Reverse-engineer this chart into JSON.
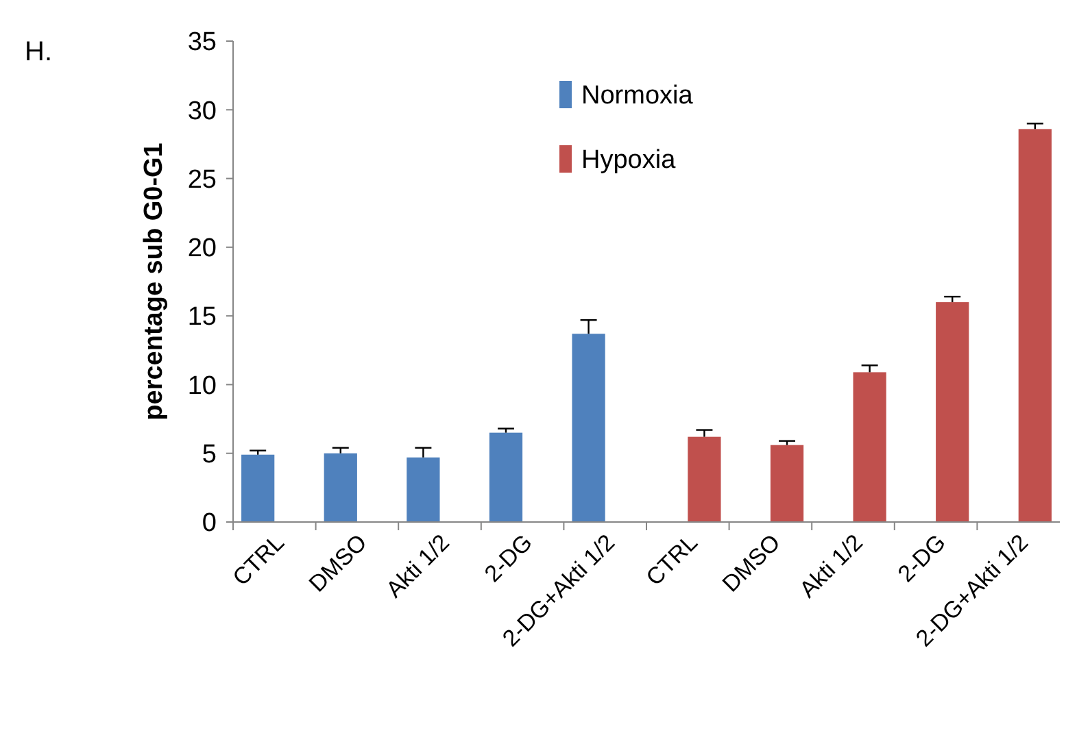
{
  "chart_data": {
    "type": "bar",
    "title": "H.",
    "ylabel": "percentage sub G0-G1",
    "categories": [
      "CTRL",
      "DMSO",
      "Akti 1/2",
      "2-DG",
      "2-DG+Akti 1/2",
      "CTRL",
      "DMSO",
      "Akti 1/2",
      "2-DG",
      "2-DG+Akti 1/2"
    ],
    "series": [
      {
        "name": "Normoxia",
        "color": "#4f81bd",
        "values": [
          4.9,
          5.0,
          4.7,
          6.5,
          13.7,
          null,
          null,
          null,
          null,
          null
        ],
        "errors": [
          [
            4.9,
            5.2
          ],
          [
            5.0,
            5.4
          ],
          [
            4.7,
            5.4
          ],
          [
            6.5,
            6.8
          ],
          [
            13.7,
            14.7
          ],
          null,
          null,
          null,
          null,
          null
        ]
      },
      {
        "name": "Hypoxia",
        "color": "#c0504d",
        "values": [
          null,
          null,
          null,
          null,
          null,
          6.2,
          5.6,
          10.9,
          16.0,
          28.6
        ],
        "errors": [
          null,
          null,
          null,
          null,
          null,
          [
            6.2,
            6.7
          ],
          [
            5.6,
            5.9
          ],
          [
            10.9,
            11.4
          ],
          [
            16.0,
            16.4
          ],
          [
            28.6,
            29.0
          ]
        ]
      }
    ],
    "ylim": [
      0,
      35
    ],
    "yticks": [
      0,
      5,
      10,
      15,
      20,
      25,
      30,
      35
    ],
    "grid": false,
    "legend": "top"
  }
}
